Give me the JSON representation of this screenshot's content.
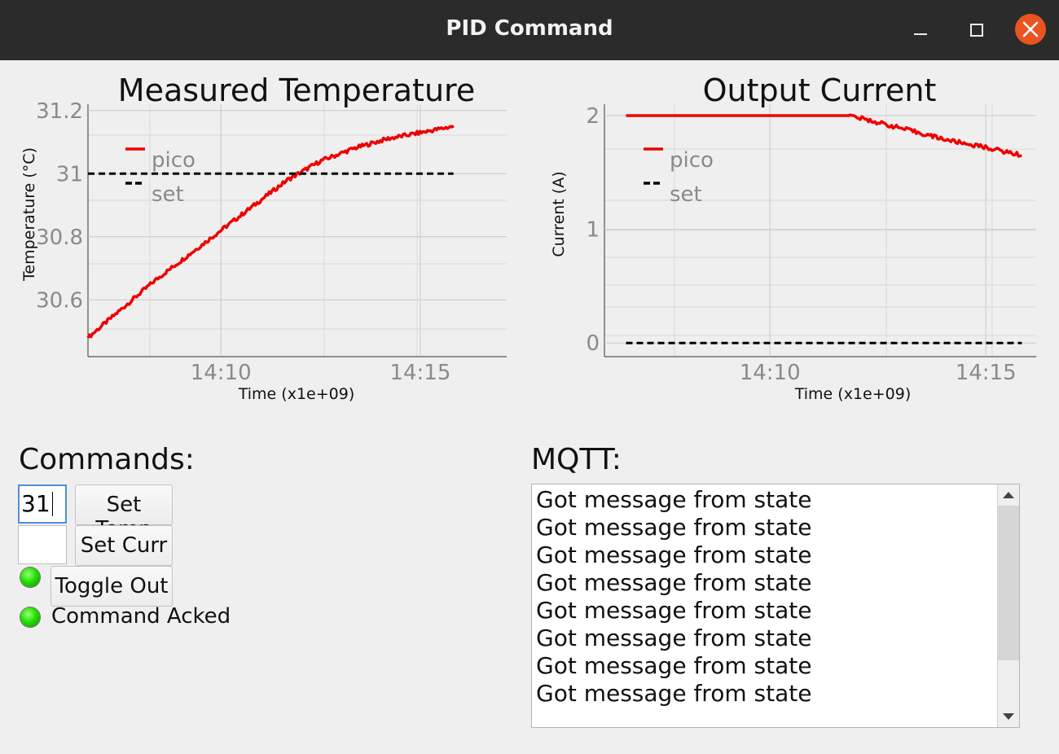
{
  "window": {
    "title": "PID Command"
  },
  "colors": {
    "pico": "#ee0000",
    "set": "#000000",
    "grid": "#d9d9d9",
    "tick": "#8a8a8a",
    "led": "#22e000"
  },
  "icons": {
    "minimize": "minimize-icon",
    "maximize": "maximize-icon",
    "close": "close-icon"
  },
  "chart_data": [
    {
      "type": "line",
      "title": "Measured Temperature",
      "xlabel": "Time (x1e+09)",
      "ylabel": "Temperature (°C)",
      "x_range": [
        "14:06:40",
        "14:17:10"
      ],
      "ylim": [
        30.42,
        31.22
      ],
      "x_ticks": [
        "14:10",
        "14:15"
      ],
      "y_ticks": [
        "30.6",
        "30.8",
        "31",
        "31.2"
      ],
      "grid": true,
      "legend": "top-left",
      "series": [
        {
          "name": "pico",
          "color": "#ee0000",
          "x": [
            "14:06:40",
            "14:07:30",
            "14:08:20",
            "14:09:10",
            "14:10:00",
            "14:10:50",
            "14:11:40",
            "14:12:30",
            "14:13:20",
            "14:14:10",
            "14:15:00",
            "14:15:50"
          ],
          "y": [
            30.48,
            30.57,
            30.66,
            30.74,
            30.82,
            30.9,
            30.98,
            31.04,
            31.08,
            31.11,
            31.13,
            31.15
          ]
        },
        {
          "name": "set",
          "color": "#000000",
          "dashed": true,
          "x": [
            "14:06:40",
            "14:15:50"
          ],
          "y": [
            31.0,
            31.0
          ]
        }
      ]
    },
    {
      "type": "line",
      "title": "Output Current",
      "xlabel": "Time (x1e+09)",
      "ylabel": "Current (A)",
      "x_range": [
        "14:06:10",
        "14:16:10"
      ],
      "ylim": [
        -0.12,
        2.1
      ],
      "x_ticks": [
        "14:10",
        "14:15"
      ],
      "y_ticks": [
        "0",
        "1",
        "2"
      ],
      "grid": true,
      "legend": "top-left",
      "series": [
        {
          "name": "pico",
          "color": "#ee0000",
          "x": [
            "14:06:40",
            "14:11:50",
            "14:12:30",
            "14:13:20",
            "14:14:10",
            "14:15:00",
            "14:15:50"
          ],
          "y": [
            2.0,
            2.0,
            1.94,
            1.86,
            1.78,
            1.72,
            1.65
          ]
        },
        {
          "name": "set",
          "color": "#000000",
          "dashed": true,
          "x": [
            "14:06:40",
            "14:15:50"
          ],
          "y": [
            0.0,
            0.0
          ]
        }
      ]
    }
  ],
  "commands": {
    "label": "Commands:",
    "temp_value": "31",
    "curr_value": "",
    "set_temp_label": "Set Temp",
    "set_curr_label": "Set Curr",
    "toggle_out_label": "Toggle Out",
    "command_acked_label": "Command Acked"
  },
  "mqtt": {
    "label": "MQTT:",
    "lines": [
      "Got message from state",
      "Got message from state",
      "Got message from state",
      "Got message from state",
      "Got message from state",
      "Got message from state",
      "Got message from state",
      "Got message from state"
    ]
  }
}
